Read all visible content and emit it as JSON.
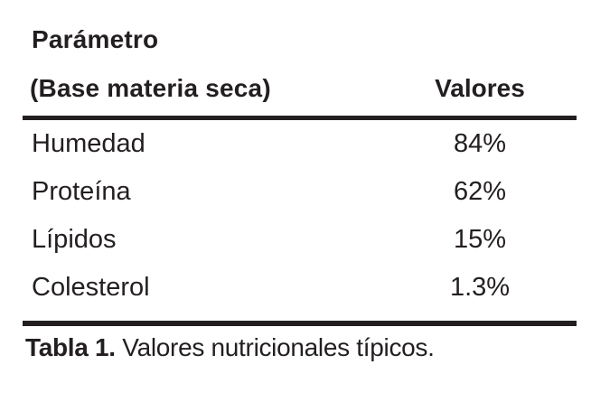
{
  "table": {
    "header": {
      "param_line1": "Parámetro",
      "param_line2": "(Base materia seca)",
      "values_label": "Valores"
    },
    "rows": [
      {
        "label": "Humedad",
        "value": "84%"
      },
      {
        "label": "Proteína",
        "value": "62%"
      },
      {
        "label": "Lípidos",
        "value": "15%"
      },
      {
        "label": "Colesterol",
        "value": "1.3%"
      }
    ],
    "caption": {
      "label": "Tabla 1.",
      "text": " Valores nutricionales típicos."
    }
  },
  "colors": {
    "background": "#ffffff",
    "text": "#231f20",
    "rule": "#231f20"
  }
}
